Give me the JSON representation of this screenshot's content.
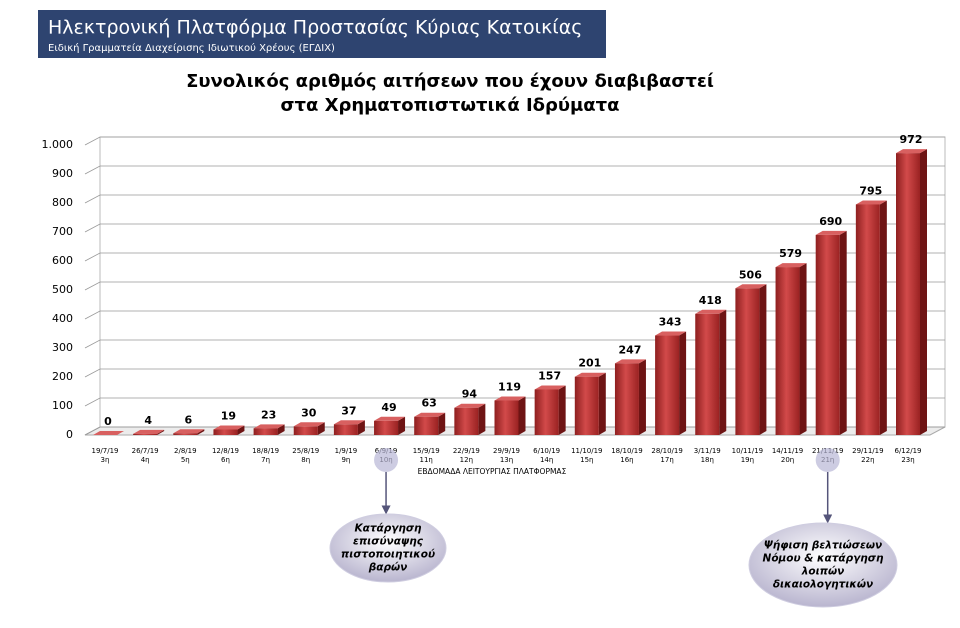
{
  "header": {
    "title": "Ηλεκτρονική Πλατφόρμα Προστασίας Κύριας Κατοικίας",
    "subtitle": "Ειδική Γραμματεία Διαχείρισης Ιδιωτικού Χρέους (ΕΓΔΙΧ)"
  },
  "chart_data": {
    "type": "bar",
    "title": [
      "Συνολικός αριθμός αιτήσεων που έχουν διαβιβαστεί",
      "στα Χρηματοπιστωτικά Ιδρύματα"
    ],
    "x_label": "ΕΒΔΟΜΑΔΑ ΛΕΙΤΟΥΡΓΙΑΣ ΠΛΑΤΦΟΡΜΑΣ",
    "categories": [
      "19/7/19",
      "26/7/19",
      "2/8/19",
      "12/8/19",
      "18/8/19",
      "25/8/19",
      "1/9/19",
      "6/9/19",
      "15/9/19",
      "22/9/19",
      "29/9/19",
      "6/10/19",
      "11/10/19",
      "18/10/19",
      "28/10/19",
      "3/11/19",
      "10/11/19",
      "14/11/19",
      "21/11/19",
      "29/11/19",
      "6/12/19"
    ],
    "weeks": [
      "3η",
      "4η",
      "5η",
      "6η",
      "7η",
      "8η",
      "9η",
      "10η",
      "11η",
      "12η",
      "13η",
      "14η",
      "15η",
      "16η",
      "17η",
      "18η",
      "19η",
      "20η",
      "21η",
      "22η",
      "23η"
    ],
    "values": [
      0,
      4,
      6,
      19,
      23,
      30,
      37,
      49,
      63,
      94,
      119,
      157,
      201,
      247,
      343,
      418,
      506,
      579,
      690,
      795,
      972
    ],
    "color": "#b22a2a",
    "ylim": [
      0,
      1000
    ],
    "yticks": [
      0,
      100,
      200,
      300,
      400,
      500,
      600,
      700,
      800,
      900,
      {
        "value": 1000,
        "label": "1.000"
      }
    ],
    "grid": true,
    "annotations": [
      {
        "lines": [
          "Κατάργηση",
          "επισύναψης",
          "πιστοποιητικού",
          "βαρών"
        ]
      },
      {
        "lines": [
          "Ψήφιση βελτιώσεων",
          "Νόμου & κατάργηση",
          "λοιπών",
          "δικαιολογητικών"
        ]
      }
    ]
  }
}
